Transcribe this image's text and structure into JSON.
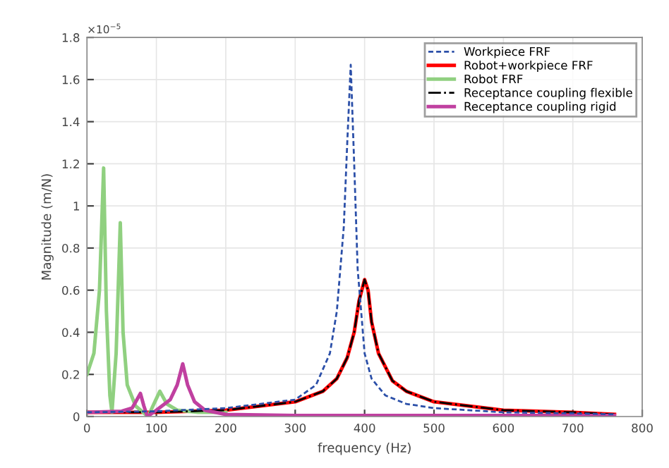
{
  "chart_data": {
    "type": "line",
    "xlabel": "frequency (Hz)",
    "ylabel": "Magnitude (m/N)",
    "annotations": [
      "×10$^{−5}$"
    ],
    "xlim": [
      0,
      800
    ],
    "xticks": [
      0,
      100,
      200,
      300,
      400,
      500,
      600,
      700,
      800
    ],
    "ylim": [
      0,
      1.8
    ],
    "yticks": [
      0,
      0.2,
      0.4,
      0.6,
      0.8,
      1,
      1.2,
      1.4,
      1.6,
      1.8
    ],
    "grid": true,
    "legend": "top right",
    "marker": "none",
    "series": [
      {
        "name": "Workpiece FRF",
        "color": "#2b4fa8",
        "line_style": "dashed",
        "x": [
          0,
          100,
          200,
          300,
          330,
          350,
          360,
          370,
          375,
          380,
          385,
          390,
          400,
          410,
          430,
          460,
          500,
          600,
          700,
          760
        ],
        "values": [
          0.02,
          0.025,
          0.04,
          0.08,
          0.15,
          0.3,
          0.5,
          0.9,
          1.3,
          1.67,
          1.2,
          0.7,
          0.3,
          0.18,
          0.1,
          0.06,
          0.04,
          0.02,
          0.015,
          0.01
        ]
      },
      {
        "name": "Robot+workpiece FRF",
        "color": "#ff0000",
        "line_style": "solid",
        "x": [
          0,
          100,
          200,
          300,
          340,
          360,
          375,
          385,
          392,
          400,
          405,
          410,
          420,
          440,
          460,
          500,
          600,
          700,
          760
        ],
        "values": [
          0.02,
          0.02,
          0.03,
          0.07,
          0.12,
          0.18,
          0.28,
          0.4,
          0.55,
          0.65,
          0.6,
          0.45,
          0.3,
          0.17,
          0.12,
          0.07,
          0.03,
          0.02,
          0.01
        ]
      },
      {
        "name": "Robot FRF",
        "color": "#90d080",
        "line_style": "solid",
        "x": [
          0,
          10,
          18,
          24,
          28,
          33,
          36,
          42,
          48,
          52,
          58,
          70,
          88,
          95,
          105,
          115,
          130,
          160,
          200
        ],
        "values": [
          0.2,
          0.3,
          0.6,
          1.18,
          0.5,
          0.1,
          0.02,
          0.3,
          0.92,
          0.4,
          0.15,
          0.05,
          0.0,
          0.05,
          0.12,
          0.06,
          0.03,
          0.02,
          0.02
        ]
      },
      {
        "name": "Receptance coupling flexible",
        "color": "#000000",
        "line_style": "dashdot",
        "x": [
          0,
          100,
          200,
          300,
          340,
          360,
          375,
          385,
          392,
          400,
          405,
          410,
          420,
          440,
          460,
          500,
          600,
          700,
          760
        ],
        "values": [
          0.02,
          0.02,
          0.03,
          0.07,
          0.12,
          0.18,
          0.28,
          0.4,
          0.55,
          0.65,
          0.6,
          0.45,
          0.3,
          0.17,
          0.12,
          0.07,
          0.03,
          0.02,
          0.01
        ]
      },
      {
        "name": "Receptance coupling rigid",
        "color": "#c040a0",
        "line_style": "solid",
        "x": [
          0,
          50,
          65,
          72,
          77,
          82,
          87,
          100,
          120,
          130,
          138,
          145,
          155,
          170,
          200,
          300,
          760
        ],
        "values": [
          0.02,
          0.025,
          0.04,
          0.08,
          0.11,
          0.05,
          0.0,
          0.03,
          0.08,
          0.15,
          0.25,
          0.15,
          0.07,
          0.03,
          0.01,
          0.005,
          0.005
        ]
      }
    ]
  }
}
